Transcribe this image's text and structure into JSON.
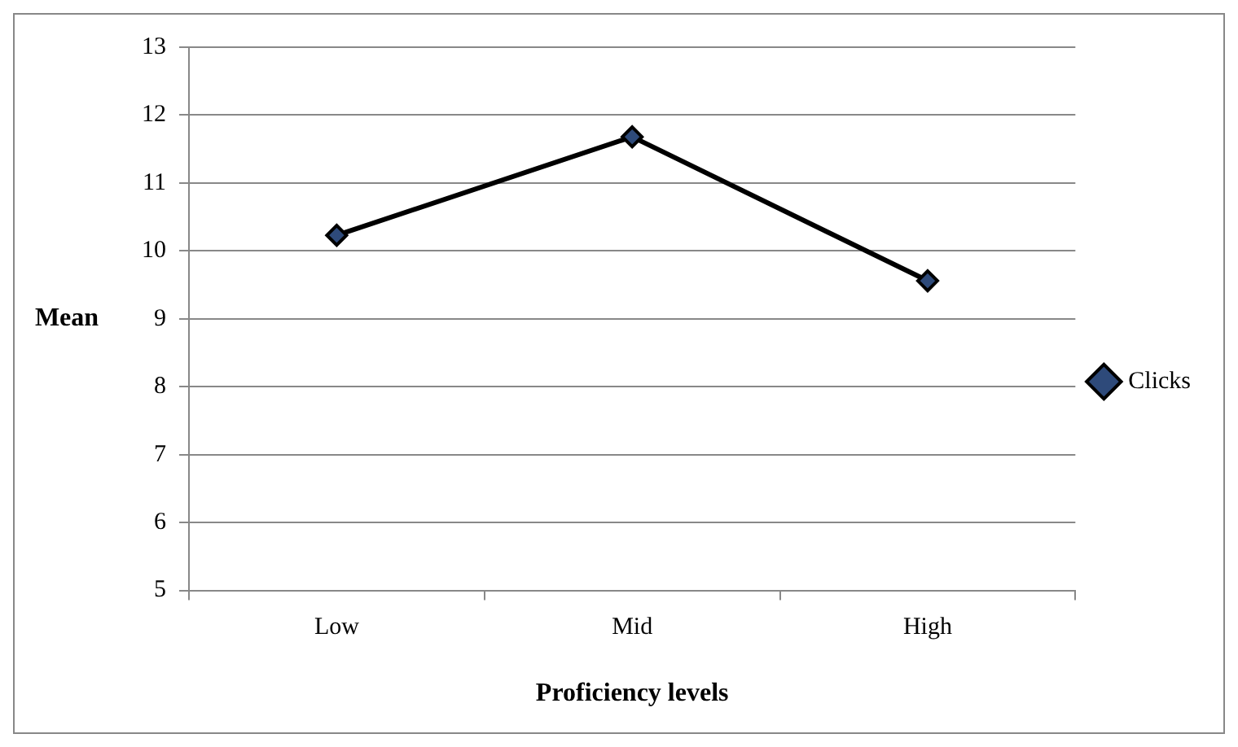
{
  "chart_data": {
    "type": "line",
    "xlabel": "Proficiency levels",
    "ylabel": "Mean",
    "categories": [
      "Low",
      "Mid",
      "High"
    ],
    "series": [
      {
        "name": "Clicks",
        "color": "#000000",
        "values": [
          10.23,
          11.68,
          9.56
        ]
      }
    ],
    "ylim": [
      5,
      13
    ],
    "yticks": [
      5,
      6,
      7,
      8,
      9,
      10,
      11,
      12,
      13
    ],
    "grid": "y",
    "legend": "right",
    "marker": "diamond",
    "line_style": "solid"
  }
}
